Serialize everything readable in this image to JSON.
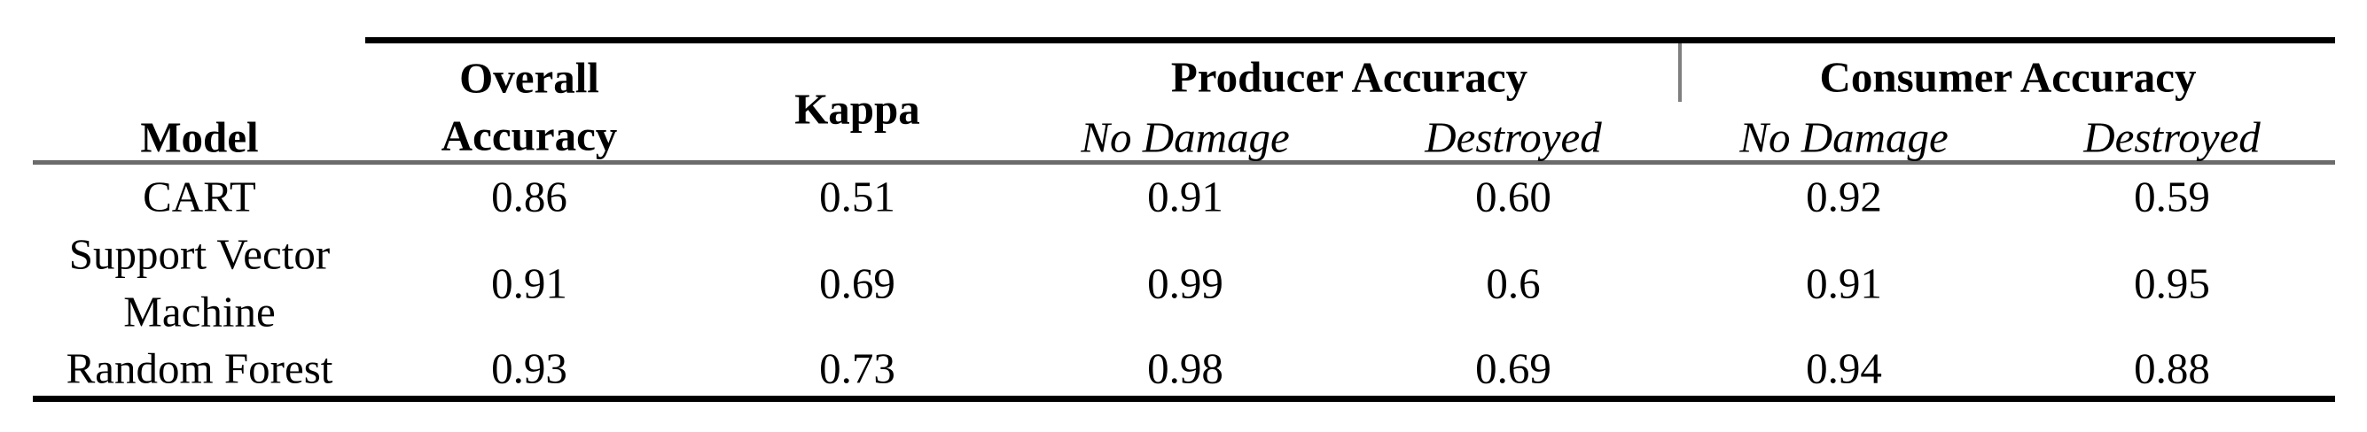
{
  "table": {
    "headers": {
      "model": "Model",
      "overall_accuracy": [
        "Overall",
        "Accuracy"
      ],
      "kappa": "Kappa",
      "producer_accuracy": "Producer Accuracy",
      "consumer_accuracy": "Consumer Accuracy",
      "sub": {
        "producer_no_damage": "No Damage",
        "producer_destroyed": "Destroyed",
        "consumer_no_damage": "No Damage",
        "consumer_destroyed": "Destroyed"
      }
    },
    "rows": [
      {
        "model": [
          "CART"
        ],
        "overall": "0.86",
        "kappa": "0.51",
        "prod_no_damage": "0.91",
        "prod_destroyed": "0.60",
        "cons_no_damage": "0.92",
        "cons_destroyed": "0.59"
      },
      {
        "model": [
          "Support Vector",
          "Machine"
        ],
        "overall": "0.91",
        "kappa": "0.69",
        "prod_no_damage": "0.99",
        "prod_destroyed": "0.6",
        "cons_no_damage": "0.91",
        "cons_destroyed": "0.95"
      },
      {
        "model": [
          "Random Forest"
        ],
        "overall": "0.93",
        "kappa": "0.73",
        "prod_no_damage": "0.98",
        "prod_destroyed": "0.69",
        "cons_no_damage": "0.94",
        "cons_destroyed": "0.88"
      }
    ]
  }
}
